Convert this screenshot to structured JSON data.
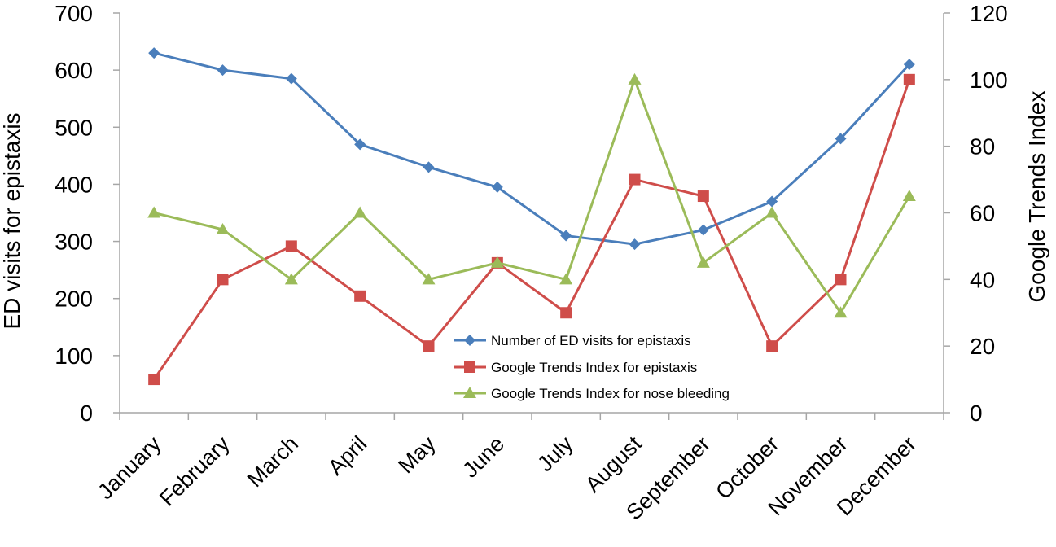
{
  "chart_data": {
    "type": "line",
    "categories": [
      "January",
      "February",
      "March",
      "April",
      "May",
      "June",
      "July",
      "August",
      "September",
      "October",
      "November",
      "December"
    ],
    "y_left": {
      "label": "ED visits for epistaxis",
      "range": [
        0,
        700
      ],
      "ticks": [
        0,
        100,
        200,
        300,
        400,
        500,
        600,
        700
      ],
      "tick_labels": [
        "0",
        "100",
        "200",
        "300",
        "400",
        "500",
        "600",
        "700"
      ]
    },
    "y_right": {
      "label": "Google Trends Index",
      "range": [
        0,
        120
      ],
      "ticks": [
        0,
        20,
        40,
        60,
        80,
        100,
        120
      ],
      "tick_labels": [
        "0",
        "20",
        "40",
        "60",
        "80",
        "100",
        "120"
      ]
    },
    "grid": false,
    "legend_position": "bottom-center",
    "series": [
      {
        "name": "Number of ED visits for epistaxis",
        "axis": "left",
        "color": "#4a7ebb",
        "marker": "diamond",
        "values": [
          630,
          600,
          585,
          470,
          430,
          395,
          310,
          295,
          320,
          370,
          480,
          610
        ]
      },
      {
        "name": "Google Trends Index for epistaxis",
        "axis": "right",
        "color": "#cf4d4a",
        "marker": "square",
        "values": [
          10,
          40,
          50,
          35,
          20,
          45,
          30,
          70,
          65,
          20,
          40,
          100
        ]
      },
      {
        "name": "Google Trends Index for nose bleeding",
        "axis": "right",
        "color": "#9bbb59",
        "marker": "triangle",
        "values": [
          60,
          55,
          40,
          60,
          40,
          45,
          40,
          100,
          45,
          60,
          30,
          65
        ]
      }
    ]
  }
}
